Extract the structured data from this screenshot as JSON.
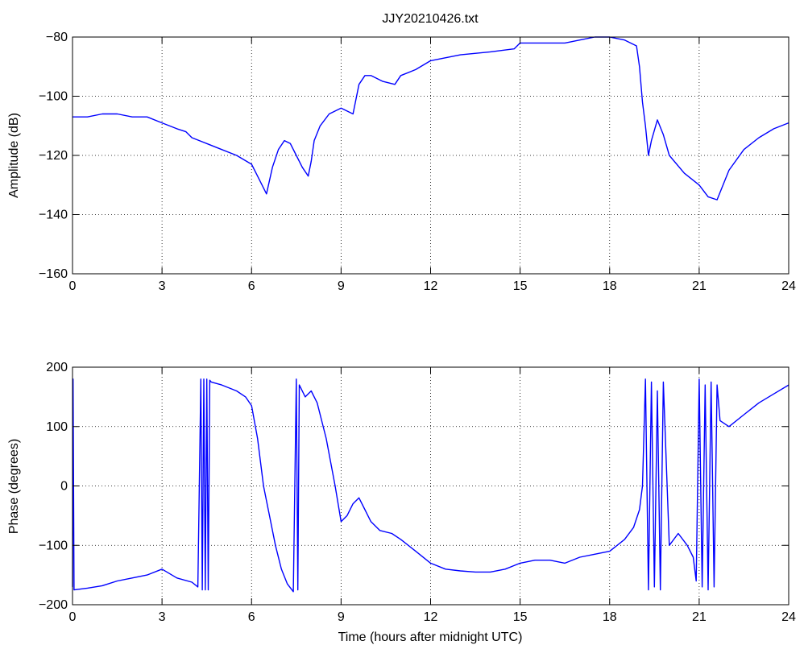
{
  "chart_data": [
    {
      "type": "line",
      "title": "JJY20210426.txt",
      "xlabel": "",
      "ylabel": "Amplitude (dB)",
      "xlim": [
        0,
        24
      ],
      "ylim": [
        -160,
        -80
      ],
      "xticks": [
        "0",
        "3",
        "6",
        "9",
        "12",
        "15",
        "18",
        "21",
        "24"
      ],
      "yticks": [
        "−160",
        "−140",
        "−120",
        "−100",
        "−80"
      ],
      "grid": true,
      "series_color": "#0000ff",
      "series": [
        {
          "name": "",
          "x": [
            0,
            0.5,
            1.0,
            1.5,
            2.0,
            2.5,
            3.0,
            3.5,
            3.8,
            4.0,
            4.5,
            5.0,
            5.5,
            6.0,
            6.2,
            6.4,
            6.5,
            6.7,
            6.9,
            7.1,
            7.3,
            7.5,
            7.7,
            7.9,
            8.0,
            8.1,
            8.3,
            8.6,
            9.0,
            9.2,
            9.4,
            9.6,
            9.8,
            10.0,
            10.4,
            10.8,
            11.0,
            11.5,
            12.0,
            13.0,
            14.0,
            14.8,
            15.0,
            15.5,
            16.0,
            16.5,
            17.0,
            17.5,
            18.0,
            18.5,
            18.9,
            19.0,
            19.1,
            19.2,
            19.3,
            19.4,
            19.6,
            19.8,
            20.0,
            20.5,
            21.0,
            21.3,
            21.6,
            22.0,
            22.5,
            23.0,
            23.5,
            24.0
          ],
          "values": [
            -107,
            -107,
            -106,
            -106,
            -107,
            -107,
            -109,
            -111,
            -112,
            -114,
            -116,
            -118,
            -120,
            -123,
            -127,
            -131,
            -133,
            -124,
            -118,
            -115,
            -116,
            -120,
            -124,
            -127,
            -122,
            -115,
            -110,
            -106,
            -104,
            -105,
            -106,
            -96,
            -93,
            -93,
            -95,
            -96,
            -93,
            -91,
            -88,
            -86,
            -85,
            -84,
            -82,
            -82,
            -82,
            -82,
            -81,
            -80,
            -80,
            -81,
            -83,
            -90,
            -102,
            -110,
            -120,
            -115,
            -108,
            -113,
            -120,
            -126,
            -130,
            -134,
            -135,
            -125,
            -118,
            -114,
            -111,
            -109
          ]
        }
      ]
    },
    {
      "type": "line",
      "title": "",
      "xlabel": "Time (hours after midnight UTC)",
      "ylabel": "Phase (degrees)",
      "xlim": [
        0,
        24
      ],
      "ylim": [
        -200,
        200
      ],
      "xticks": [
        "0",
        "3",
        "6",
        "9",
        "12",
        "15",
        "18",
        "21",
        "24"
      ],
      "yticks": [
        "−200",
        "−100",
        "0",
        "100",
        "200"
      ],
      "grid": true,
      "series_color": "#0000ff",
      "series": [
        {
          "name": "",
          "x": [
            0,
            0.02,
            0.05,
            0.5,
            1.0,
            1.5,
            2.0,
            2.5,
            3.0,
            3.5,
            4.0,
            4.2,
            4.3,
            4.35,
            4.4,
            4.45,
            4.5,
            4.55,
            4.6,
            4.65,
            5.0,
            5.5,
            5.8,
            6.0,
            6.2,
            6.4,
            6.6,
            6.8,
            7.0,
            7.2,
            7.4,
            7.5,
            7.55,
            7.6,
            7.8,
            8.0,
            8.1,
            8.2,
            8.5,
            8.8,
            9.0,
            9.2,
            9.4,
            9.6,
            9.8,
            10.0,
            10.3,
            10.7,
            11.0,
            11.5,
            12.0,
            12.5,
            13.0,
            13.5,
            14.0,
            14.5,
            15.0,
            15.5,
            16.0,
            16.5,
            17.0,
            17.5,
            18.0,
            18.5,
            18.8,
            19.0,
            19.1,
            19.2,
            19.3,
            19.4,
            19.5,
            19.6,
            19.7,
            19.8,
            20.0,
            20.3,
            20.6,
            20.8,
            20.9,
            21.0,
            21.1,
            21.2,
            21.3,
            21.4,
            21.5,
            21.6,
            21.7,
            22.0,
            22.5,
            23.0,
            23.5,
            24.0
          ],
          "values": [
            -170,
            180,
            -175,
            -172,
            -168,
            -160,
            -155,
            -150,
            -140,
            -155,
            -162,
            -170,
            180,
            -175,
            180,
            -175,
            180,
            -175,
            178,
            175,
            170,
            160,
            150,
            135,
            80,
            0,
            -50,
            -100,
            -140,
            -165,
            -178,
            180,
            -175,
            170,
            150,
            160,
            150,
            140,
            80,
            0,
            -60,
            -50,
            -30,
            -20,
            -40,
            -60,
            -75,
            -80,
            -90,
            -110,
            -130,
            -140,
            -143,
            -145,
            -145,
            -140,
            -130,
            -125,
            -125,
            -130,
            -120,
            -115,
            -110,
            -90,
            -70,
            -40,
            0,
            180,
            -175,
            175,
            -170,
            160,
            -175,
            175,
            -100,
            -80,
            -100,
            -120,
            -160,
            180,
            -170,
            170,
            -175,
            175,
            -170,
            170,
            110,
            100,
            120,
            140,
            155,
            170
          ]
        }
      ]
    }
  ]
}
